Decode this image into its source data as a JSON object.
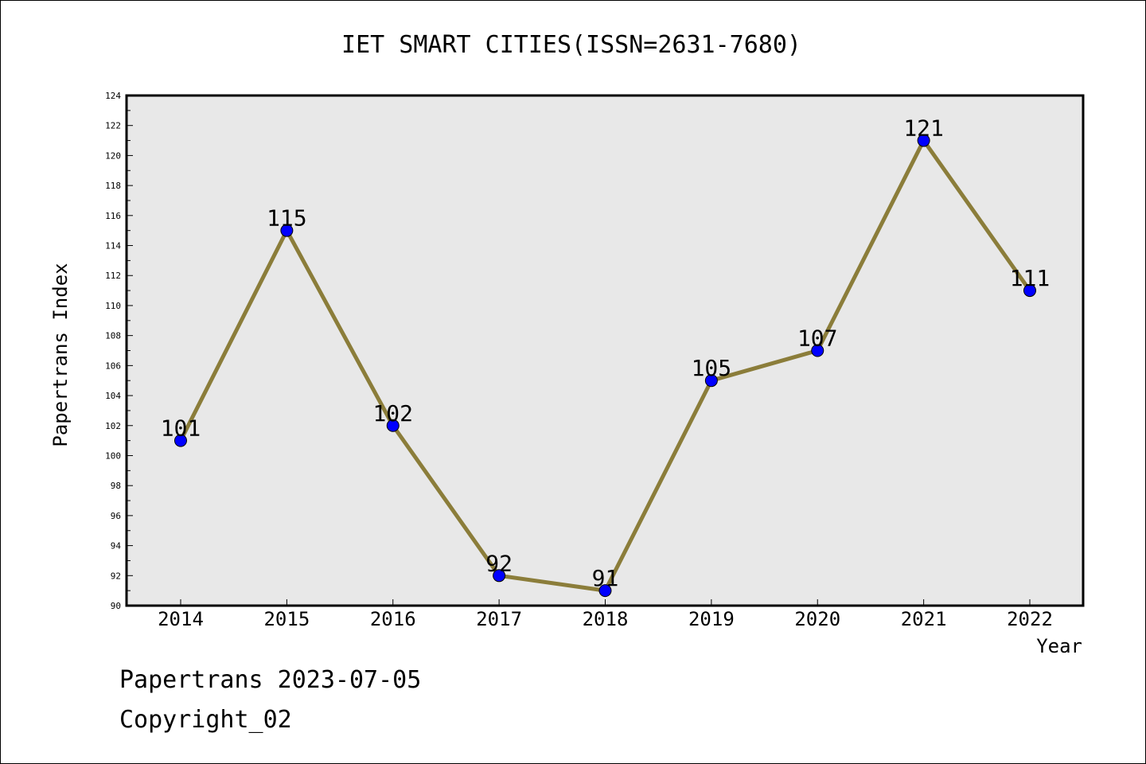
{
  "chart_data": {
    "type": "line",
    "title": "IET SMART CITIES(ISSN=2631-7680)",
    "xlabel": "Year",
    "ylabel": "Papertrans Index",
    "categories": [
      "2014",
      "2015",
      "2016",
      "2017",
      "2018",
      "2019",
      "2020",
      "2021",
      "2022"
    ],
    "values": [
      101,
      115,
      102,
      92,
      91,
      105,
      107,
      121,
      111
    ],
    "data_labels": [
      "101",
      "115",
      "102",
      "92",
      "91",
      "105",
      "107",
      "121",
      "111"
    ],
    "ylim": [
      90,
      124
    ],
    "yticks": [
      "90",
      "92",
      "94",
      "96",
      "98",
      "100",
      "102",
      "104",
      "106",
      "108",
      "110",
      "112",
      "114",
      "116",
      "118",
      "120",
      "122",
      "124"
    ],
    "grid": false,
    "legend": "none",
    "colors": {
      "line": "#8B7D3A",
      "marker": "#0000FF",
      "plot_background": "#E8E8E8"
    }
  },
  "footer": {
    "line1": "Papertrans 2023-07-05",
    "line2": "Copyright_02"
  }
}
